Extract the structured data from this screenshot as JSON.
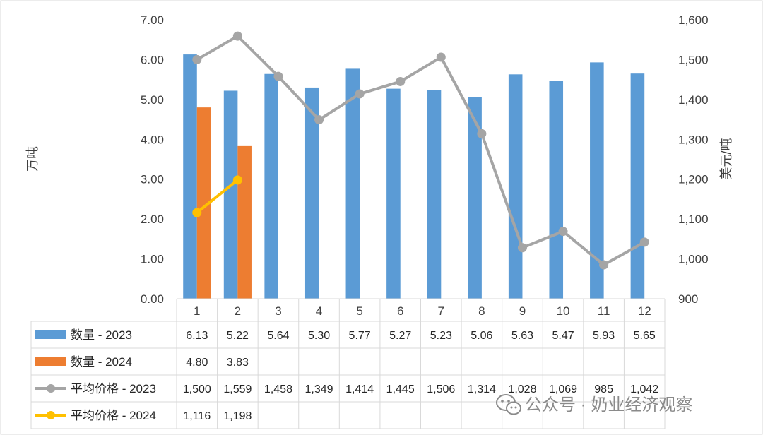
{
  "chart_data": {
    "type": "bar",
    "categories": [
      "1",
      "2",
      "3",
      "4",
      "5",
      "6",
      "7",
      "8",
      "9",
      "10",
      "11",
      "12"
    ],
    "series": [
      {
        "name": "数量 - 2023",
        "kind": "bar",
        "axis": "left",
        "color": "#5b9bd5",
        "values": [
          6.13,
          5.22,
          5.64,
          5.3,
          5.77,
          5.27,
          5.23,
          5.06,
          5.63,
          5.47,
          5.93,
          5.65
        ],
        "labels": [
          "6.13",
          "5.22",
          "5.64",
          "5.30",
          "5.77",
          "5.27",
          "5.23",
          "5.06",
          "5.63",
          "5.47",
          "5.93",
          "5.65"
        ]
      },
      {
        "name": "数量 - 2024",
        "kind": "bar",
        "axis": "left",
        "color": "#ed7d31",
        "values": [
          4.8,
          3.83,
          null,
          null,
          null,
          null,
          null,
          null,
          null,
          null,
          null,
          null
        ],
        "labels": [
          "4.80",
          "3.83",
          "",
          "",
          "",
          "",
          "",
          "",
          "",
          "",
          "",
          ""
        ]
      },
      {
        "name": "平均价格 - 2023",
        "kind": "line",
        "axis": "right",
        "color": "#a5a5a5",
        "values": [
          1500,
          1559,
          1458,
          1349,
          1414,
          1445,
          1506,
          1314,
          1028,
          1069,
          985,
          1042
        ],
        "labels": [
          "1,500",
          "1,559",
          "1,458",
          "1,349",
          "1,414",
          "1,445",
          "1,506",
          "1,314",
          "1,028",
          "1,069",
          "985",
          "1,042"
        ]
      },
      {
        "name": "平均价格 - 2024",
        "kind": "line",
        "axis": "right",
        "color": "#ffc000",
        "values": [
          1116,
          1198,
          null,
          null,
          null,
          null,
          null,
          null,
          null,
          null,
          null,
          null
        ],
        "labels": [
          "1,116",
          "1,198",
          "",
          "",
          "",
          "",
          "",
          "",
          "",
          "",
          "",
          ""
        ]
      }
    ],
    "ylabel": "万吨",
    "y2label": "美元/吨",
    "ylim": [
      0,
      7
    ],
    "y2lim": [
      900,
      1600
    ],
    "yticks": [
      "0.00",
      "1.00",
      "2.00",
      "3.00",
      "4.00",
      "5.00",
      "6.00",
      "7.00"
    ],
    "y2ticks": [
      "900",
      "1,000",
      "1,100",
      "1,200",
      "1,300",
      "1,400",
      "1,500",
      "1,600"
    ],
    "grid": true,
    "legend": "data-table"
  },
  "watermark": "公众号 · 奶业经济观察"
}
